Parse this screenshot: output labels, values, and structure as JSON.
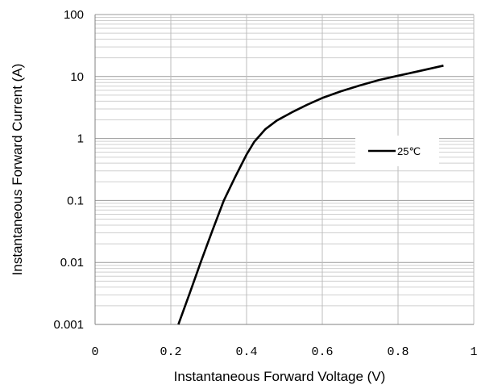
{
  "chart_data": {
    "type": "line",
    "xlabel": "Instantaneous Forward Voltage (V)",
    "ylabel": "Instantaneous Forward Current (A)",
    "xlim": [
      0,
      1
    ],
    "ylim": [
      0.001,
      100
    ],
    "yscale": "log",
    "grid": true,
    "legend_position": "right",
    "x_ticks": [
      "0",
      "0.2",
      "0.4",
      "0.6",
      "0.8",
      "1"
    ],
    "y_ticks": [
      "0.001",
      "0.01",
      "0.1",
      "1",
      "10",
      "100"
    ],
    "series": [
      {
        "name": "25℃",
        "color": "#000000",
        "x": [
          0.22,
          0.25,
          0.28,
          0.31,
          0.34,
          0.37,
          0.4,
          0.42,
          0.45,
          0.48,
          0.52,
          0.56,
          0.6,
          0.65,
          0.7,
          0.75,
          0.8,
          0.85,
          0.92
        ],
        "y": [
          0.001,
          0.0032,
          0.0105,
          0.033,
          0.1,
          0.24,
          0.55,
          0.88,
          1.42,
          1.95,
          2.65,
          3.5,
          4.5,
          5.8,
          7.2,
          8.8,
          10.3,
          12.0,
          15.0
        ]
      }
    ]
  }
}
